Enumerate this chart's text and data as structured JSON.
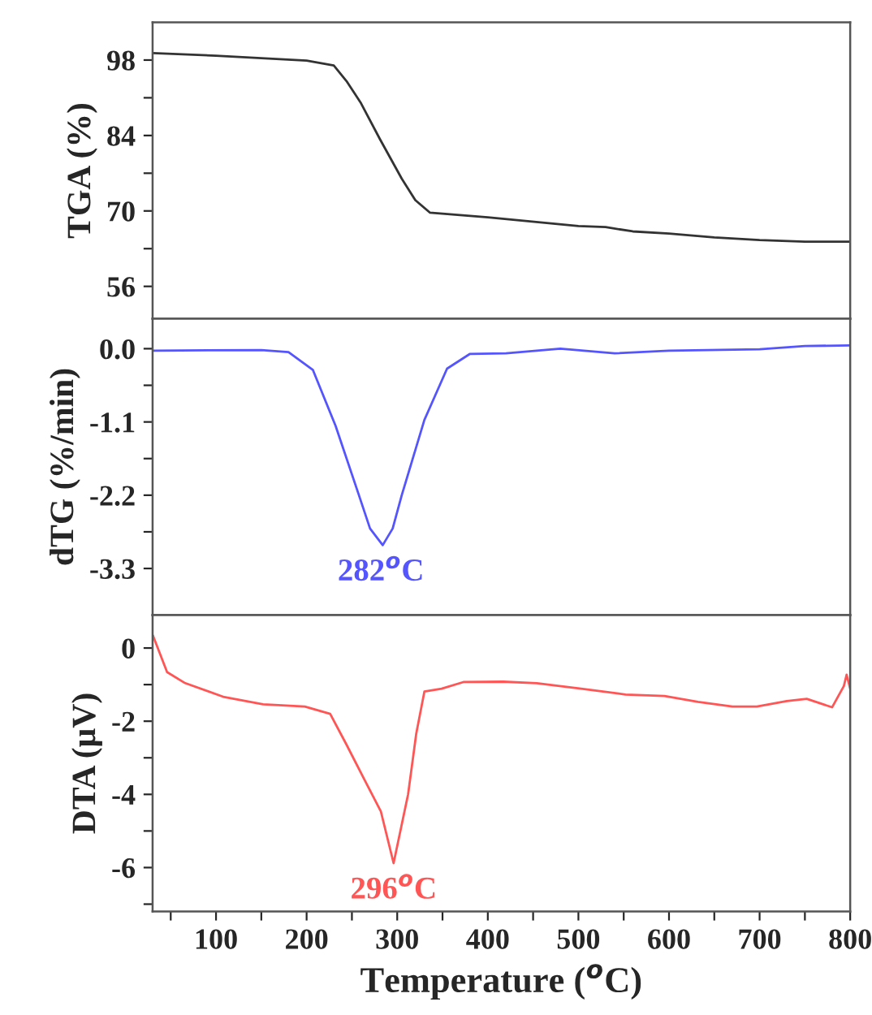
{
  "chart_data": [
    {
      "type": "line",
      "ylabel": "TGA (%)",
      "xlim": [
        30,
        800
      ],
      "ylim": [
        50,
        105
      ],
      "yticks": [
        56,
        {
          "value": 63,
          "label": null
        },
        70,
        {
          "value": 77,
          "label": null
        },
        84,
        {
          "value": 91,
          "label": null
        },
        98
      ],
      "tick_labels": "y",
      "grid": false,
      "legend": false,
      "series": [
        {
          "color": "#333333",
          "x": [
            30,
            100,
            200,
            230,
            244,
            260,
            281,
            305,
            320,
            336,
            400,
            500,
            530,
            560,
            600,
            650,
            700,
            750,
            800
          ],
          "values": [
            99.3,
            98.8,
            97.9,
            97,
            94.1,
            90,
            83.3,
            76,
            72,
            69.7,
            68.8,
            67.2,
            67,
            66.2,
            65.8,
            65.1,
            64.6,
            64.3,
            64.3
          ]
        }
      ]
    },
    {
      "type": "line",
      "ylabel": "dTG (%/min)",
      "xlim": [
        30,
        800
      ],
      "ylim": [
        -4,
        0.45
      ],
      "yticks": [
        {
          "value": -3.3,
          "label": "-3.3"
        },
        {
          "value": -2.75,
          "label": null
        },
        {
          "value": -2.2,
          "label": "-2.2"
        },
        {
          "value": -1.65,
          "label": null
        },
        {
          "value": -1.1,
          "label": "-1.1"
        },
        {
          "value": -0.55,
          "label": null
        },
        {
          "value": 0.0,
          "label": "0.0"
        }
      ],
      "tick_labels": "y",
      "grid": false,
      "legend": false,
      "annotations": [
        {
          "text": "282$^{o}$C",
          "x": 282,
          "y": -2.95
        }
      ],
      "series": [
        {
          "color": "#5555ff",
          "x": [
            30,
            150,
            180,
            207,
            232,
            257,
            270,
            284,
            295,
            305,
            330,
            355,
            380,
            420,
            480,
            540,
            600,
            700,
            750,
            800
          ],
          "values": [
            -0.03,
            -0.02,
            -0.05,
            -0.32,
            -1.16,
            -2.17,
            -2.7,
            -2.95,
            -2.7,
            -2.2,
            -1.07,
            -0.3,
            -0.08,
            -0.07,
            0.0,
            -0.07,
            -0.03,
            -0.01,
            0.04,
            0.05
          ]
        }
      ]
    },
    {
      "type": "line",
      "xlabel": "Temperature ($^{o}$C)",
      "ylabel": "DTA (μV)",
      "xlim": [
        30,
        800
      ],
      "ylim": [
        -7.2,
        0.9
      ],
      "xticks": [
        {
          "value": 50,
          "label": null
        },
        100,
        {
          "value": 150,
          "label": null
        },
        200,
        {
          "value": 250,
          "label": null
        },
        300,
        {
          "value": 350,
          "label": null
        },
        400,
        {
          "value": 450,
          "label": null
        },
        500,
        {
          "value": 550,
          "label": null
        },
        600,
        {
          "value": 650,
          "label": null
        },
        700,
        {
          "value": 750,
          "label": null
        },
        800
      ],
      "yticks": [
        {
          "value": -7,
          "label": null
        },
        {
          "value": -6,
          "label": "-6"
        },
        {
          "value": -5,
          "label": null
        },
        {
          "value": -4,
          "label": "-4"
        },
        {
          "value": -3,
          "label": null
        },
        {
          "value": -2,
          "label": "-2"
        },
        {
          "value": -1,
          "label": null
        },
        0
      ],
      "grid": false,
      "legend": false,
      "annotations": [
        {
          "text": "296$^{o}$C",
          "x": 296,
          "y": -5.88
        }
      ],
      "series": [
        {
          "color": "#ff5555",
          "x": [
            30.4,
            46,
            66,
            109,
            152,
            198,
            226,
            244,
            263,
            282,
            296,
            312,
            321,
            330,
            349,
            373,
            417,
            454,
            503,
            552,
            595,
            632,
            670,
            697,
            730,
            752,
            780,
            793,
            796,
            800
          ],
          "values": [
            0.34,
            -0.66,
            -0.96,
            -1.34,
            -1.54,
            -1.6,
            -1.8,
            -2.64,
            -3.56,
            -4.47,
            -5.88,
            -4.0,
            -2.34,
            -1.19,
            -1.11,
            -0.93,
            -0.92,
            -0.96,
            -1.11,
            -1.27,
            -1.31,
            -1.47,
            -1.6,
            -1.6,
            -1.45,
            -1.39,
            -1.62,
            -1.04,
            -0.73,
            -1.11
          ]
        }
      ]
    }
  ]
}
